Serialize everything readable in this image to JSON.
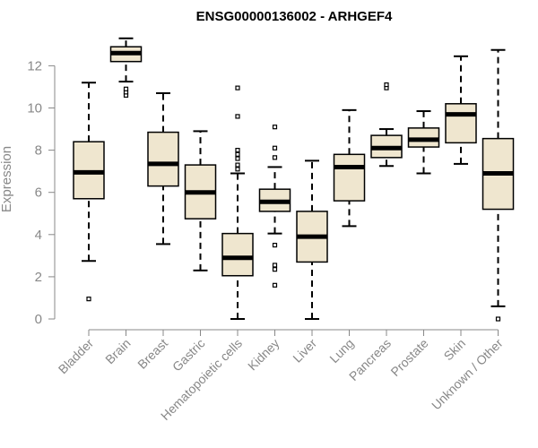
{
  "chart_data": {
    "type": "boxplot",
    "title": "ENSG00000136002 - ARHGEF4",
    "xlabel": "",
    "ylabel": "Expression",
    "ylim": [
      0,
      13.4
    ],
    "yticks": [
      0,
      2,
      4,
      6,
      8,
      10,
      12
    ],
    "categories": [
      "Bladder",
      "Brain",
      "Breast",
      "Gastric",
      "Hematopoietic cells",
      "Kidney",
      "Liver",
      "Lung",
      "Pancreas",
      "Prostate",
      "Skin",
      "Unknown / Other"
    ],
    "boxes": [
      {
        "name": "Bladder",
        "whisker_low": 2.75,
        "q1": 5.7,
        "median": 6.95,
        "q3": 8.4,
        "whisker_high": 11.2,
        "outliers": [
          0.95
        ]
      },
      {
        "name": "Brain",
        "whisker_low": 11.25,
        "q1": 12.2,
        "median": 12.6,
        "q3": 12.9,
        "whisker_high": 13.3,
        "outliers": [
          10.6,
          10.75,
          10.9
        ]
      },
      {
        "name": "Breast",
        "whisker_low": 3.55,
        "q1": 6.3,
        "median": 7.35,
        "q3": 8.85,
        "whisker_high": 10.7,
        "outliers": []
      },
      {
        "name": "Gastric",
        "whisker_low": 2.3,
        "q1": 4.75,
        "median": 6.0,
        "q3": 7.3,
        "whisker_high": 8.9,
        "outliers": []
      },
      {
        "name": "Hematopoietic cells",
        "whisker_low": 0.0,
        "q1": 2.05,
        "median": 2.9,
        "q3": 4.05,
        "whisker_high": 6.9,
        "outliers": [
          7.1,
          7.3,
          7.6,
          7.8,
          8.0,
          9.6,
          10.95
        ]
      },
      {
        "name": "Kidney",
        "whisker_low": 4.05,
        "q1": 5.1,
        "median": 5.55,
        "q3": 6.15,
        "whisker_high": 7.2,
        "outliers": [
          1.6,
          2.35,
          2.55,
          3.5,
          7.65,
          8.1,
          9.1
        ]
      },
      {
        "name": "Liver",
        "whisker_low": 0.0,
        "q1": 2.7,
        "median": 3.9,
        "q3": 5.1,
        "whisker_high": 7.5,
        "outliers": []
      },
      {
        "name": "Lung",
        "whisker_low": 4.4,
        "q1": 5.6,
        "median": 7.2,
        "q3": 7.8,
        "whisker_high": 9.9,
        "outliers": []
      },
      {
        "name": "Pancreas",
        "whisker_low": 7.25,
        "q1": 7.65,
        "median": 8.1,
        "q3": 8.7,
        "whisker_high": 9.0,
        "outliers": [
          10.95,
          11.1
        ]
      },
      {
        "name": "Prostate",
        "whisker_low": 6.9,
        "q1": 8.15,
        "median": 8.5,
        "q3": 9.05,
        "whisker_high": 9.85,
        "outliers": []
      },
      {
        "name": "Skin",
        "whisker_low": 7.35,
        "q1": 8.35,
        "median": 9.7,
        "q3": 10.2,
        "whisker_high": 12.45,
        "outliers": []
      },
      {
        "name": "Unknown / Other",
        "whisker_low": 0.6,
        "q1": 5.2,
        "median": 6.9,
        "q3": 8.55,
        "whisker_high": 12.75,
        "outliers": [
          0.0
        ]
      }
    ],
    "colors": {
      "box_fill": "#efe6cf",
      "box_stroke": "#000000",
      "axis": "#888888",
      "tick_text": "#888888",
      "title_text": "#000000"
    }
  }
}
